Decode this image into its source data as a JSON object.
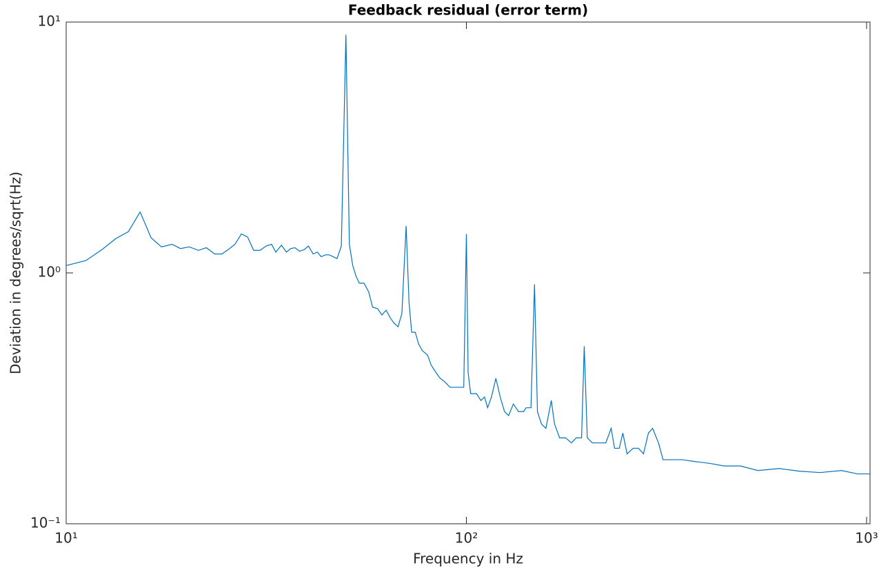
{
  "chart_data": {
    "type": "line",
    "title": "Feedback residual (error term)",
    "xlabel": "Frequency in Hz",
    "ylabel": "Deviation in degrees/sqrt(Hz)",
    "log_x": true,
    "log_y": true,
    "color": "#0072bd",
    "xlim": [
      10,
      1020
    ],
    "ylim": [
      0.1,
      10
    ],
    "xticks": [
      {
        "value": 10,
        "label": "10¹"
      },
      {
        "value": 100,
        "label": "10²"
      },
      {
        "value": 1000,
        "label": "10³"
      }
    ],
    "yticks": [
      {
        "value": 0.1,
        "label": "10⁻¹"
      },
      {
        "value": 1,
        "label": "10⁰"
      },
      {
        "value": 10,
        "label": "10¹"
      }
    ],
    "x": [
      10,
      11.2,
      12.3,
      13.3,
      14.3,
      15.3,
      16.3,
      17.3,
      18.4,
      19.3,
      20.3,
      21.4,
      22.4,
      23.5,
      24.5,
      25.6,
      26.4,
      27.4,
      28.4,
      29.4,
      30.5,
      31.6,
      32.6,
      33.4,
      34.5,
      35.5,
      36.4,
      37.3,
      38.3,
      39.4,
      40.3,
      41.4,
      42.4,
      43.4,
      44.4,
      45.4,
      46.5,
      47.5,
      48.7,
      50,
      51,
      52,
      53,
      54,
      55.5,
      57,
      58.3,
      60,
      61.5,
      63,
      64.6,
      66,
      67.5,
      69,
      70.7,
      71.9,
      73,
      74.5,
      76,
      77.6,
      80,
      81.6,
      84,
      86,
      88,
      91,
      94,
      97,
      98.5,
      100,
      101,
      102.5,
      106,
      108.7,
      111,
      113,
      115.5,
      118.5,
      121.5,
      124.5,
      127.5,
      131,
      135,
      139,
      141,
      145,
      148,
      150.5,
      154,
      158,
      163,
      166,
      171,
      177,
      183,
      188,
      194,
      197,
      200.5,
      206.5,
      215,
      223,
      230,
      234.5,
      241,
      246,
      252,
      261,
      269,
      277,
      285,
      292,
      302,
      310,
      325,
      346,
      373,
      406,
      440,
      484,
      535,
      605,
      680,
      765,
      866,
      950,
      1020
    ],
    "values": [
      1.07,
      1.12,
      1.24,
      1.37,
      1.46,
      1.75,
      1.38,
      1.27,
      1.3,
      1.25,
      1.27,
      1.23,
      1.26,
      1.19,
      1.19,
      1.25,
      1.3,
      1.43,
      1.39,
      1.23,
      1.23,
      1.28,
      1.3,
      1.21,
      1.29,
      1.21,
      1.25,
      1.26,
      1.22,
      1.24,
      1.28,
      1.19,
      1.21,
      1.16,
      1.18,
      1.18,
      1.16,
      1.14,
      1.28,
      8.9,
      1.3,
      1.07,
      0.97,
      0.91,
      0.91,
      0.84,
      0.73,
      0.72,
      0.68,
      0.71,
      0.66,
      0.63,
      0.61,
      0.69,
      1.54,
      0.76,
      0.58,
      0.58,
      0.52,
      0.49,
      0.47,
      0.43,
      0.4,
      0.38,
      0.37,
      0.35,
      0.35,
      0.35,
      0.35,
      1.43,
      0.4,
      0.33,
      0.33,
      0.31,
      0.32,
      0.29,
      0.32,
      0.38,
      0.32,
      0.28,
      0.27,
      0.3,
      0.28,
      0.28,
      0.29,
      0.29,
      0.9,
      0.28,
      0.25,
      0.24,
      0.31,
      0.25,
      0.22,
      0.22,
      0.21,
      0.22,
      0.22,
      0.51,
      0.22,
      0.21,
      0.21,
      0.21,
      0.24,
      0.2,
      0.2,
      0.23,
      0.19,
      0.2,
      0.2,
      0.19,
      0.23,
      0.24,
      0.21,
      0.18,
      0.18,
      0.18,
      0.177,
      0.174,
      0.17,
      0.17,
      0.163,
      0.166,
      0.162,
      0.16,
      0.163,
      0.158,
      0.158
    ]
  }
}
